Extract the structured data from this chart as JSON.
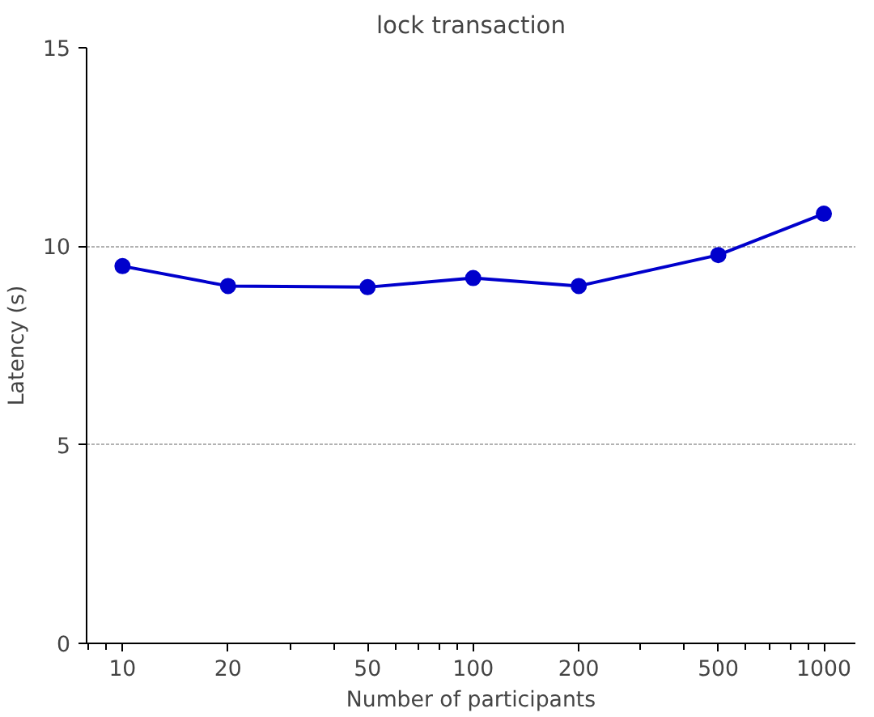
{
  "chart_data": {
    "type": "line",
    "title": "lock transaction",
    "xlabel": "Number of participants",
    "ylabel": "Latency (s)",
    "x": [
      10,
      20,
      50,
      100,
      200,
      500,
      1000
    ],
    "series": [
      {
        "color": "#0000cc",
        "values": [
          9.5,
          9.0,
          8.97,
          9.2,
          9.0,
          9.78,
          10.82
        ]
      }
    ],
    "xlim": [
      7.9,
      1230
    ],
    "xticks": [
      10,
      20,
      50,
      100,
      200,
      500,
      1000
    ],
    "ylim": [
      0,
      15
    ],
    "yticks": [
      0,
      5,
      10,
      15
    ],
    "log": "x",
    "grid": "y",
    "marker": "circle",
    "line_style": "solid"
  }
}
